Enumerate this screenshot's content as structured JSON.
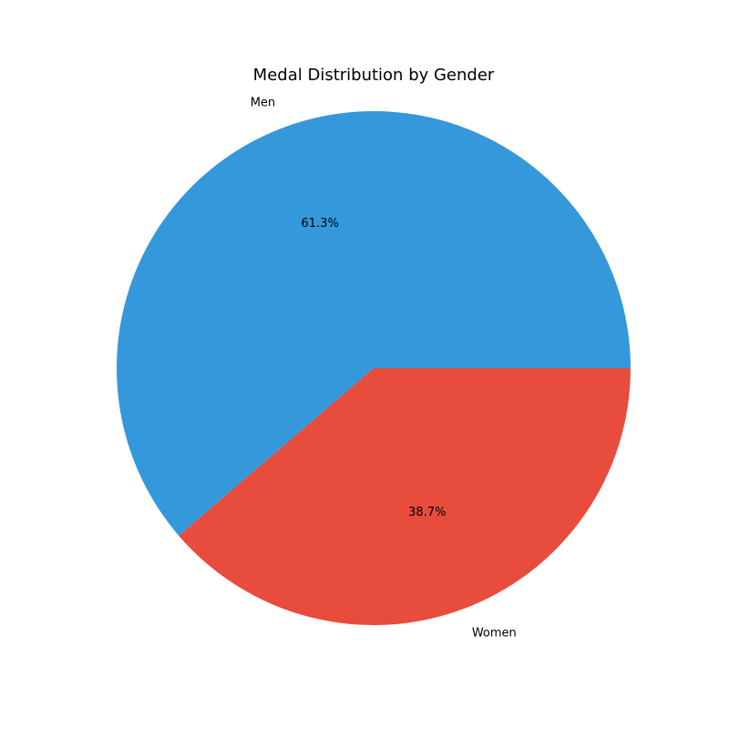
{
  "chart_data": {
    "type": "pie",
    "title": "Medal Distribution by Gender",
    "slices": [
      {
        "label": "Men",
        "value": 61.3,
        "pct_label": "61.3%",
        "color": "#3498db"
      },
      {
        "label": "Women",
        "value": 38.7,
        "pct_label": "38.7%",
        "color": "#e74c3c"
      }
    ],
    "start_angle_deg": 0,
    "direction": "counterclockwise",
    "legend": "none"
  }
}
